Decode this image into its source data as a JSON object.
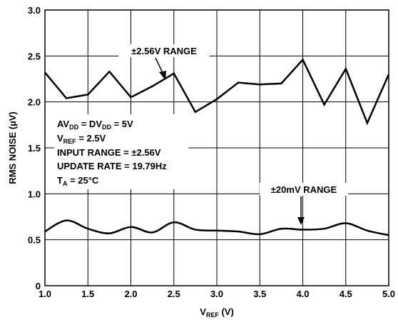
{
  "chart_data": {
    "type": "line",
    "xlabel": {
      "main": "V",
      "sub": "REF",
      "rest": " (V)"
    },
    "ylabel": "RMS NOISE (µV)",
    "xlim": [
      1.0,
      5.0
    ],
    "ylim": [
      0,
      3.0
    ],
    "x_ticks": [
      "1.0",
      "1.5",
      "2.0",
      "2.5",
      "3.0",
      "3.5",
      "4.0",
      "4.5",
      "5.0"
    ],
    "y_ticks": [
      "0",
      "0.5",
      "1.0",
      "1.5",
      "2.0",
      "2.5",
      "3.0"
    ],
    "grid": true,
    "series": [
      {
        "name": "±2.56V RANGE",
        "x": [
          1.0,
          1.25,
          1.5,
          1.75,
          2.0,
          2.25,
          2.5,
          2.75,
          3.0,
          3.25,
          3.5,
          3.75,
          4.0,
          4.25,
          4.5,
          4.75,
          5.0
        ],
        "y": [
          2.32,
          2.04,
          2.08,
          2.33,
          2.05,
          2.17,
          2.31,
          1.89,
          2.03,
          2.21,
          2.19,
          2.2,
          2.46,
          1.97,
          2.36,
          1.77,
          2.3
        ]
      },
      {
        "name": "±20mV RANGE",
        "x": [
          1.0,
          1.25,
          1.5,
          1.75,
          2.0,
          2.25,
          2.5,
          2.75,
          3.0,
          3.25,
          3.5,
          3.75,
          4.0,
          4.25,
          4.5,
          4.75,
          5.0
        ],
        "y": [
          0.59,
          0.71,
          0.62,
          0.57,
          0.64,
          0.58,
          0.69,
          0.61,
          0.6,
          0.59,
          0.56,
          0.62,
          0.61,
          0.62,
          0.68,
          0.6,
          0.55
        ]
      }
    ],
    "annotations": {
      "range_high": "±2.56V RANGE",
      "range_low": "±20mV RANGE",
      "cond1": {
        "a": "AV",
        "a_sub": "DD",
        "b": " = DV",
        "b_sub": "DD",
        "c": " = 5V"
      },
      "cond2": {
        "a": "V",
        "a_sub": "REF",
        "b": " = 2.5V"
      },
      "cond3": "INPUT RANGE = ±2.56V",
      "cond4": "UPDATE RATE = 19.79Hz",
      "cond5": {
        "a": "T",
        "a_sub": "A",
        "b": " = 25°C"
      }
    }
  }
}
